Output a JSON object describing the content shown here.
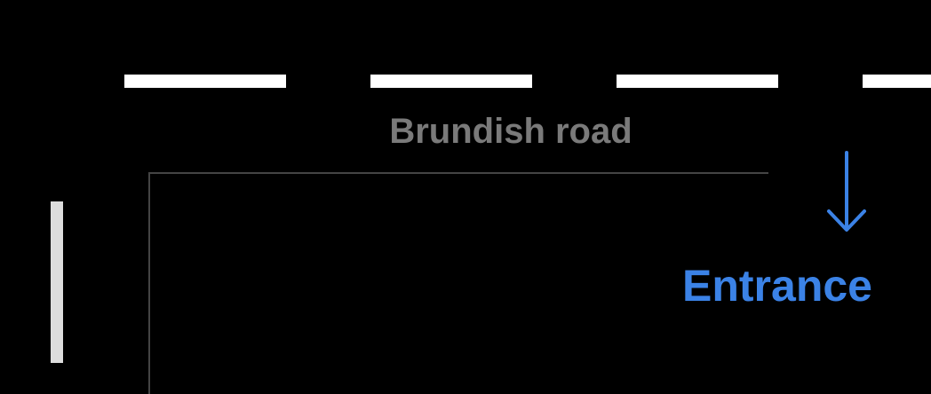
{
  "map": {
    "road_name": "Brundish road",
    "entrance_label": "Entrance",
    "entrance_icon": "arrow-down-icon",
    "colors": {
      "background": "#000000",
      "road_markings": "#ffffff",
      "road_label": "#7a7a7a",
      "boundary": "#444444",
      "side_bar": "#dddddd",
      "entrance": "#3b82e6"
    }
  }
}
